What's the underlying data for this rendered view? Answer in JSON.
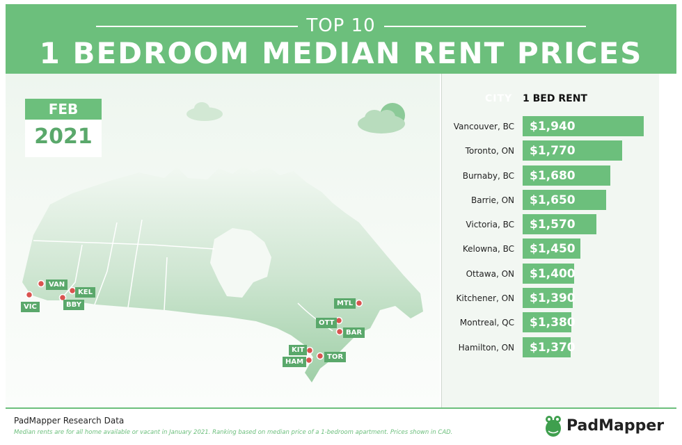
{
  "header": {
    "kicker": "TOP 10",
    "title": "1 BEDROOM MEDIAN RENT PRICES"
  },
  "calendar": {
    "month": "FEB",
    "year": "2021"
  },
  "map": {
    "labels": {
      "van": "VAN",
      "kel": "KEL",
      "bby": "BBY",
      "vic": "VIC",
      "mtl": "MTL",
      "ott": "OTT",
      "bar": "BAR",
      "kit": "KIT",
      "ham": "HAM",
      "tor": "TOR"
    }
  },
  "table": {
    "city_header": "CITY",
    "rent_header": "1 BED RENT"
  },
  "chart_data": {
    "type": "bar",
    "orientation": "horizontal",
    "categories": [
      "Vancouver, BC",
      "Toronto, ON",
      "Burnaby, BC",
      "Barrie, ON",
      "Victoria, BC",
      "Kelowna, BC",
      "Ottawa, ON",
      "Kitchener, ON",
      "Montreal, QC",
      "Hamilton, ON"
    ],
    "values": [
      1940,
      1770,
      1680,
      1650,
      1570,
      1450,
      1400,
      1390,
      1380,
      1370
    ],
    "labels": [
      "$1,940",
      "$1,770",
      "$1,680",
      "$1,650",
      "$1,570",
      "$1,450",
      "$1,400",
      "$1,390",
      "$1,380",
      "$1,370"
    ],
    "bar_color": "#6cbf7c"
  },
  "footer": {
    "title": "PadMapper Research Data",
    "note": "Median rents are for all home available or vacant in January 2021. Ranking based on median price of a 1-bedroom apartment. Prices shown in CAD.",
    "brand": "PadMapper"
  },
  "colors": {
    "accent": "#6cbf7c",
    "accent_dark": "#5aa86b",
    "pin": "#d9534f"
  }
}
